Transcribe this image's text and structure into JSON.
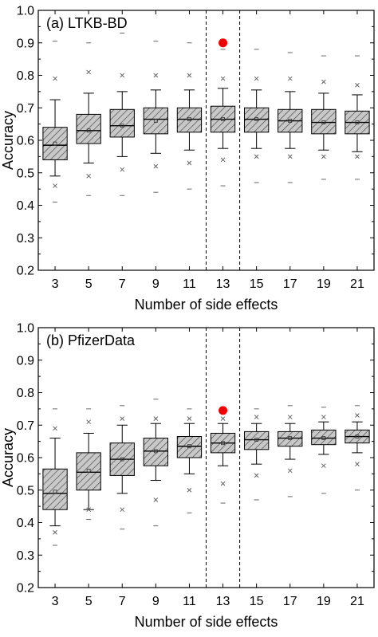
{
  "chart_data": [
    {
      "type": "box",
      "title": "(a) LTKB-BD",
      "xlabel": "Number of side effects",
      "ylabel": "Accuracy",
      "ylim": [
        0.2,
        1.0
      ],
      "yticks": [
        "0.2",
        "0.3",
        "0.4",
        "0.5",
        "0.6",
        "0.7",
        "0.8",
        "0.9",
        "1.0"
      ],
      "categories": [
        "3",
        "5",
        "7",
        "9",
        "11",
        "13",
        "15",
        "17",
        "19",
        "21"
      ],
      "box_fill": "#c8c8c8",
      "box_hatch": "diagonal",
      "highlight_region": [
        "12",
        "14"
      ],
      "highlight_point": {
        "x": "13",
        "y": 0.9,
        "color": "#ee0000"
      },
      "boxes": [
        {
          "x": "3",
          "whisker_low": 0.49,
          "q1": 0.54,
          "median": 0.585,
          "q3": 0.64,
          "whisker_high": 0.725,
          "mean": 0.59,
          "outliers": [
            0.41,
            0.46,
            0.79,
            0.905
          ]
        },
        {
          "x": "5",
          "whisker_low": 0.53,
          "q1": 0.59,
          "median": 0.63,
          "q3": 0.68,
          "whisker_high": 0.745,
          "mean": 0.63,
          "outliers": [
            0.43,
            0.49,
            0.81,
            0.9
          ]
        },
        {
          "x": "7",
          "whisker_low": 0.55,
          "q1": 0.61,
          "median": 0.645,
          "q3": 0.695,
          "whisker_high": 0.75,
          "mean": 0.645,
          "outliers": [
            0.43,
            0.51,
            0.8,
            0.93
          ]
        },
        {
          "x": "9",
          "whisker_low": 0.56,
          "q1": 0.62,
          "median": 0.665,
          "q3": 0.7,
          "whisker_high": 0.755,
          "mean": 0.66,
          "outliers": [
            0.44,
            0.52,
            0.8,
            0.905
          ]
        },
        {
          "x": "11",
          "whisker_low": 0.57,
          "q1": 0.625,
          "median": 0.665,
          "q3": 0.7,
          "whisker_high": 0.755,
          "mean": 0.665,
          "outliers": [
            0.45,
            0.53,
            0.8,
            0.9
          ]
        },
        {
          "x": "13",
          "whisker_low": 0.575,
          "q1": 0.625,
          "median": 0.665,
          "q3": 0.705,
          "whisker_high": 0.76,
          "mean": 0.665,
          "outliers": [
            0.46,
            0.54,
            0.79,
            0.88
          ]
        },
        {
          "x": "15",
          "whisker_low": 0.575,
          "q1": 0.625,
          "median": 0.665,
          "q3": 0.7,
          "whisker_high": 0.755,
          "mean": 0.665,
          "outliers": [
            0.47,
            0.55,
            0.79,
            0.88
          ]
        },
        {
          "x": "17",
          "whisker_low": 0.575,
          "q1": 0.625,
          "median": 0.66,
          "q3": 0.695,
          "whisker_high": 0.75,
          "mean": 0.66,
          "outliers": [
            0.47,
            0.55,
            0.79,
            0.87
          ]
        },
        {
          "x": "19",
          "whisker_low": 0.57,
          "q1": 0.62,
          "median": 0.655,
          "q3": 0.695,
          "whisker_high": 0.745,
          "mean": 0.655,
          "outliers": [
            0.48,
            0.55,
            0.78,
            0.86
          ]
        },
        {
          "x": "21",
          "whisker_low": 0.565,
          "q1": 0.62,
          "median": 0.655,
          "q3": 0.69,
          "whisker_high": 0.74,
          "mean": 0.655,
          "outliers": [
            0.48,
            0.55,
            0.77,
            0.86
          ]
        }
      ]
    },
    {
      "type": "box",
      "title": "(b) PfizerData",
      "xlabel": "Number of side effects",
      "ylabel": "Accuracy",
      "ylim": [
        0.2,
        1.0
      ],
      "yticks": [
        "0.2",
        "0.3",
        "0.4",
        "0.5",
        "0.6",
        "0.7",
        "0.8",
        "0.9",
        "1.0"
      ],
      "categories": [
        "3",
        "5",
        "7",
        "9",
        "11",
        "13",
        "15",
        "17",
        "19",
        "21"
      ],
      "box_fill": "#c8c8c8",
      "box_hatch": "diagonal",
      "highlight_region": [
        "12",
        "14"
      ],
      "highlight_point": {
        "x": "13",
        "y": 0.745,
        "color": "#ee0000"
      },
      "boxes": [
        {
          "x": "3",
          "whisker_low": 0.39,
          "q1": 0.44,
          "median": 0.49,
          "q3": 0.565,
          "whisker_high": 0.66,
          "mean": 0.495,
          "outliers": [
            0.33,
            0.37,
            0.69,
            0.75
          ]
        },
        {
          "x": "5",
          "whisker_low": 0.44,
          "q1": 0.5,
          "median": 0.555,
          "q3": 0.615,
          "whisker_high": 0.675,
          "mean": 0.56,
          "outliers": [
            0.41,
            0.44,
            0.71,
            0.75
          ]
        },
        {
          "x": "7",
          "whisker_low": 0.49,
          "q1": 0.545,
          "median": 0.595,
          "q3": 0.645,
          "whisker_high": 0.7,
          "mean": 0.595,
          "outliers": [
            0.38,
            0.44,
            0.72,
            0.76
          ]
        },
        {
          "x": "9",
          "whisker_low": 0.53,
          "q1": 0.575,
          "median": 0.62,
          "q3": 0.66,
          "whisker_high": 0.705,
          "mean": 0.62,
          "outliers": [
            0.39,
            0.47,
            0.72,
            0.78
          ]
        },
        {
          "x": "11",
          "whisker_low": 0.55,
          "q1": 0.6,
          "median": 0.635,
          "q3": 0.665,
          "whisker_high": 0.705,
          "mean": 0.635,
          "outliers": [
            0.43,
            0.5,
            0.72,
            0.75
          ]
        },
        {
          "x": "13",
          "whisker_low": 0.575,
          "q1": 0.615,
          "median": 0.645,
          "q3": 0.675,
          "whisker_high": 0.705,
          "mean": 0.645,
          "outliers": [
            0.46,
            0.52,
            0.72,
            0.75
          ]
        },
        {
          "x": "15",
          "whisker_low": 0.58,
          "q1": 0.625,
          "median": 0.655,
          "q3": 0.68,
          "whisker_high": 0.705,
          "mean": 0.655,
          "outliers": [
            0.47,
            0.545,
            0.725,
            0.75
          ]
        },
        {
          "x": "17",
          "whisker_low": 0.595,
          "q1": 0.635,
          "median": 0.66,
          "q3": 0.68,
          "whisker_high": 0.705,
          "mean": 0.66,
          "outliers": [
            0.48,
            0.56,
            0.725,
            0.76
          ]
        },
        {
          "x": "19",
          "whisker_low": 0.61,
          "q1": 0.64,
          "median": 0.66,
          "q3": 0.685,
          "whisker_high": 0.71,
          "mean": 0.66,
          "outliers": [
            0.49,
            0.575,
            0.725,
            0.755
          ]
        },
        {
          "x": "21",
          "whisker_low": 0.615,
          "q1": 0.645,
          "median": 0.665,
          "q3": 0.685,
          "whisker_high": 0.71,
          "mean": 0.665,
          "outliers": [
            0.5,
            0.58,
            0.73,
            0.76
          ]
        }
      ]
    }
  ]
}
